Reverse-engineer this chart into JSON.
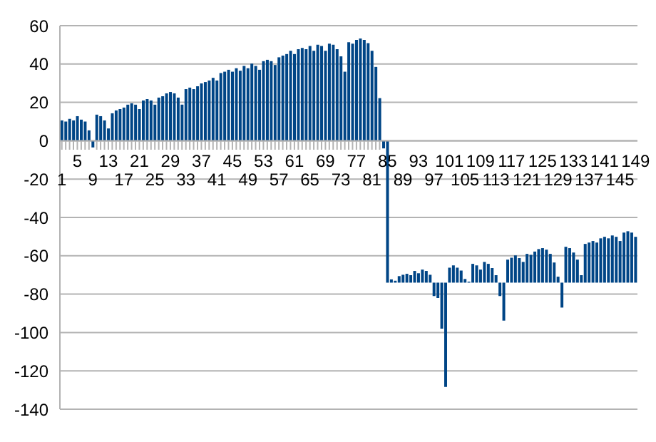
{
  "chart_data": {
    "type": "bar",
    "categories": [
      "1",
      null,
      null,
      null,
      "5",
      null,
      null,
      null,
      "9",
      null,
      null,
      null,
      "13",
      null,
      null,
      null,
      "17",
      null,
      null,
      null,
      "21",
      null,
      null,
      null,
      "25",
      null,
      null,
      null,
      "29",
      null,
      null,
      null,
      "33",
      null,
      null,
      null,
      "37",
      null,
      null,
      null,
      "41",
      null,
      null,
      null,
      "45",
      null,
      null,
      null,
      "49",
      null,
      null,
      null,
      "53",
      null,
      null,
      null,
      "57",
      null,
      null,
      null,
      "61",
      null,
      null,
      null,
      "65",
      null,
      null,
      null,
      "69",
      null,
      null,
      null,
      "73",
      null,
      null,
      null,
      "77",
      null,
      null,
      null,
      "81",
      null,
      null,
      null,
      "85",
      null,
      null,
      null,
      "89",
      null,
      null,
      null,
      "93",
      null,
      null,
      null,
      "97",
      null,
      null,
      null,
      "101",
      null,
      null,
      null,
      "105",
      null,
      null,
      null,
      "109",
      null,
      null,
      null,
      "113",
      null,
      null,
      null,
      "117",
      null,
      null,
      null,
      "121",
      null,
      null,
      null,
      "125",
      null,
      null,
      null,
      "129",
      null,
      null,
      null,
      "133",
      null,
      null,
      null,
      "137",
      null,
      null,
      null,
      "141",
      null,
      null,
      null,
      "145",
      null,
      null,
      null,
      "149"
    ],
    "values": [
      10.6,
      10,
      11.4,
      10.6,
      12.8,
      11,
      10,
      5.4,
      -3.5,
      13.6,
      12.8,
      10.6,
      6.4,
      14.3,
      15.8,
      16.5,
      17.3,
      18.8,
      19.5,
      18.8,
      16.5,
      21,
      21.7,
      21,
      18.8,
      22.5,
      23.2,
      24.7,
      25.4,
      24.7,
      22.5,
      18.8,
      26.9,
      27.7,
      26.9,
      28.4,
      29.9,
      30.6,
      31.4,
      32.8,
      31.4,
      35.3,
      36,
      37,
      36,
      37.8,
      36.5,
      39,
      37.8,
      40.2,
      39,
      37,
      41.5,
      42.2,
      41.5,
      39.5,
      43.5,
      44.4,
      45.2,
      46.9,
      45.2,
      47.7,
      48.4,
      47.7,
      49.4,
      46.9,
      50.1,
      49.4,
      46.9,
      50.6,
      50.1,
      47.7,
      44,
      36,
      51.4,
      50.6,
      52.6,
      53.3,
      52.6,
      50.9,
      46.9,
      38.5,
      22.2,
      -4,
      -74,
      1.7,
      1,
      3.4,
      4.1,
      4.6,
      3.9,
      6.1,
      4.9,
      6.8,
      6.1,
      4.1,
      -7,
      -8,
      -24,
      -54.4,
      7.8,
      9,
      7.8,
      6.3,
      1.9,
      0.5,
      9.8,
      9,
      6.8,
      10.8,
      9.8,
      7.6,
      3.9,
      -7,
      -19.8,
      12,
      13,
      14.2,
      12.8,
      10.8,
      15,
      14.5,
      16.2,
      17.5,
      18,
      17.2,
      15,
      10.5,
      3.1,
      -13,
      18.7,
      18,
      15.7,
      12,
      3.9,
      20.2,
      20.9,
      21.7,
      20.9,
      23.1,
      23.9,
      23.1,
      24.6,
      23.9,
      21.7,
      26.1,
      26.8,
      26.1,
      23.9
    ],
    "base": [
      0,
      0,
      0,
      0,
      0,
      0,
      0,
      0,
      0,
      0,
      0,
      0,
      0,
      0,
      0,
      0,
      0,
      0,
      0,
      0,
      0,
      0,
      0,
      0,
      0,
      0,
      0,
      0,
      0,
      0,
      0,
      0,
      0,
      0,
      0,
      0,
      0,
      0,
      0,
      0,
      0,
      0,
      0,
      0,
      0,
      0,
      0,
      0,
      0,
      0,
      0,
      0,
      0,
      0,
      0,
      0,
      0,
      0,
      0,
      0,
      0,
      0,
      0,
      0,
      0,
      0,
      0,
      0,
      0,
      0,
      0,
      0,
      0,
      0,
      0,
      0,
      0,
      0,
      0,
      0,
      0,
      0,
      0,
      0,
      0,
      -74,
      -74,
      -74,
      -74,
      -74,
      -74,
      -74,
      -74,
      -74,
      -74,
      -74,
      -74,
      -74,
      -74,
      -74,
      -74,
      -74,
      -74,
      -74,
      -74,
      -74,
      -74,
      -74,
      -74,
      -74,
      -74,
      -74,
      -74,
      -74,
      -74,
      -74,
      -74,
      -74,
      -74,
      -74,
      -74,
      -74,
      -74,
      -74,
      -74,
      -74,
      -74,
      -74,
      -74,
      -74,
      -74,
      -74,
      -74,
      -74,
      -74,
      -74,
      -74,
      -74,
      -74,
      -74,
      -74,
      -74,
      -74,
      -74,
      -74,
      -74,
      -74,
      -74,
      -74
    ],
    "color": "#004586",
    "ylim": [
      -140,
      60
    ],
    "yticks": [
      -140,
      -120,
      -100,
      -80,
      -60,
      -40,
      -20,
      0,
      20,
      40,
      60
    ],
    "grid": "y"
  }
}
